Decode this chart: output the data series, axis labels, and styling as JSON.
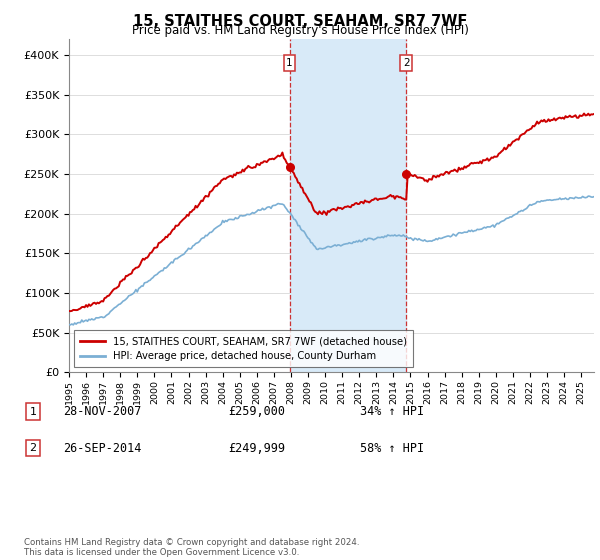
{
  "title": "15, STAITHES COURT, SEAHAM, SR7 7WF",
  "subtitle": "Price paid vs. HM Land Registry's House Price Index (HPI)",
  "ytick_values": [
    0,
    50000,
    100000,
    150000,
    200000,
    250000,
    300000,
    350000,
    400000
  ],
  "ylim": [
    0,
    420000
  ],
  "sale1_year": 2007.917,
  "sale1_price": 259000,
  "sale1_label": "28-NOV-2007",
  "sale1_hpi_text": "34% ↑ HPI",
  "sale2_year": 2014.75,
  "sale2_price": 249999,
  "sale2_label": "26-SEP-2014",
  "sale2_hpi_text": "58% ↑ HPI",
  "property_color": "#cc0000",
  "hpi_color": "#7bafd4",
  "shaded_color": "#d8eaf8",
  "vline_color": "#cc3333",
  "legend_property": "15, STAITHES COURT, SEAHAM, SR7 7WF (detached house)",
  "legend_hpi": "HPI: Average price, detached house, County Durham",
  "footer": "Contains HM Land Registry data © Crown copyright and database right 2024.\nThis data is licensed under the Open Government Licence v3.0.",
  "xlim_left": 1995.0,
  "xlim_right": 2025.75
}
